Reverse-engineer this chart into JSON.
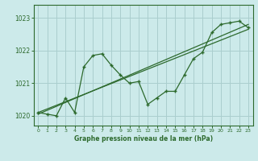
{
  "title": "Graphe pression niveau de la mer (hPa)",
  "background_color": "#cceaea",
  "grid_color": "#aacece",
  "line_color": "#2d6a2d",
  "spine_color": "#2d6a2d",
  "xlim": [
    -0.5,
    23.5
  ],
  "ylim": [
    1019.7,
    1023.4
  ],
  "yticks": [
    1020,
    1021,
    1022,
    1023
  ],
  "xticks": [
    0,
    1,
    2,
    3,
    4,
    5,
    6,
    7,
    8,
    9,
    10,
    11,
    12,
    13,
    14,
    15,
    16,
    17,
    18,
    19,
    20,
    21,
    22,
    23
  ],
  "main_series_x": [
    0,
    1,
    2,
    3,
    4,
    5,
    6,
    7,
    8,
    9,
    10,
    11,
    12,
    13,
    14,
    15,
    16,
    17,
    18,
    19,
    20,
    21,
    22,
    23
  ],
  "main_series_y": [
    1020.1,
    1020.05,
    1020.0,
    1020.55,
    1020.1,
    1021.5,
    1021.85,
    1021.9,
    1021.55,
    1021.25,
    1021.0,
    1021.05,
    1020.35,
    1020.55,
    1020.75,
    1020.75,
    1021.25,
    1021.75,
    1021.95,
    1022.55,
    1022.8,
    1022.85,
    1022.9,
    1022.7
  ],
  "trend1_x": [
    0,
    23
  ],
  "trend1_y": [
    1020.05,
    1022.8
  ],
  "trend2_x": [
    0,
    23
  ],
  "trend2_y": [
    1020.1,
    1022.65
  ],
  "figsize": [
    3.2,
    2.0
  ],
  "dpi": 100
}
